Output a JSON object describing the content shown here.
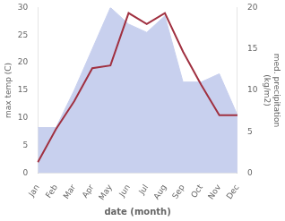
{
  "chart_data": {
    "type": "line",
    "categories": [
      "Jan",
      "Feb",
      "Mar",
      "Apr",
      "May",
      "Jun",
      "Jul",
      "Aug",
      "Sep",
      "Oct",
      "Nov",
      "Dec"
    ],
    "series": [
      {
        "type": "area",
        "axis": "y2",
        "color": "#c8d0ee",
        "values": [
          5.5,
          5.5,
          10.0,
          15.0,
          20.0,
          18.0,
          17.0,
          19.0,
          11.0,
          11.0,
          12.0,
          7.0
        ]
      },
      {
        "type": "line",
        "color": "#a03040",
        "values": [
          2.0,
          8.0,
          13.0,
          19.0,
          19.5,
          29.0,
          27.0,
          29.0,
          22.0,
          16.0,
          10.5,
          10.5
        ]
      }
    ],
    "xlabel": "date (month)",
    "ylabel": "max temp (C)",
    "y2label": "med. precipitation\n(kg/m2)",
    "ylim": [
      0,
      30
    ],
    "yticks": [
      0,
      5,
      10,
      15,
      20,
      25,
      30
    ],
    "y2lim": [
      0,
      20
    ],
    "y2ticks": [
      0,
      5,
      10,
      15,
      20
    ],
    "grid": false
  }
}
